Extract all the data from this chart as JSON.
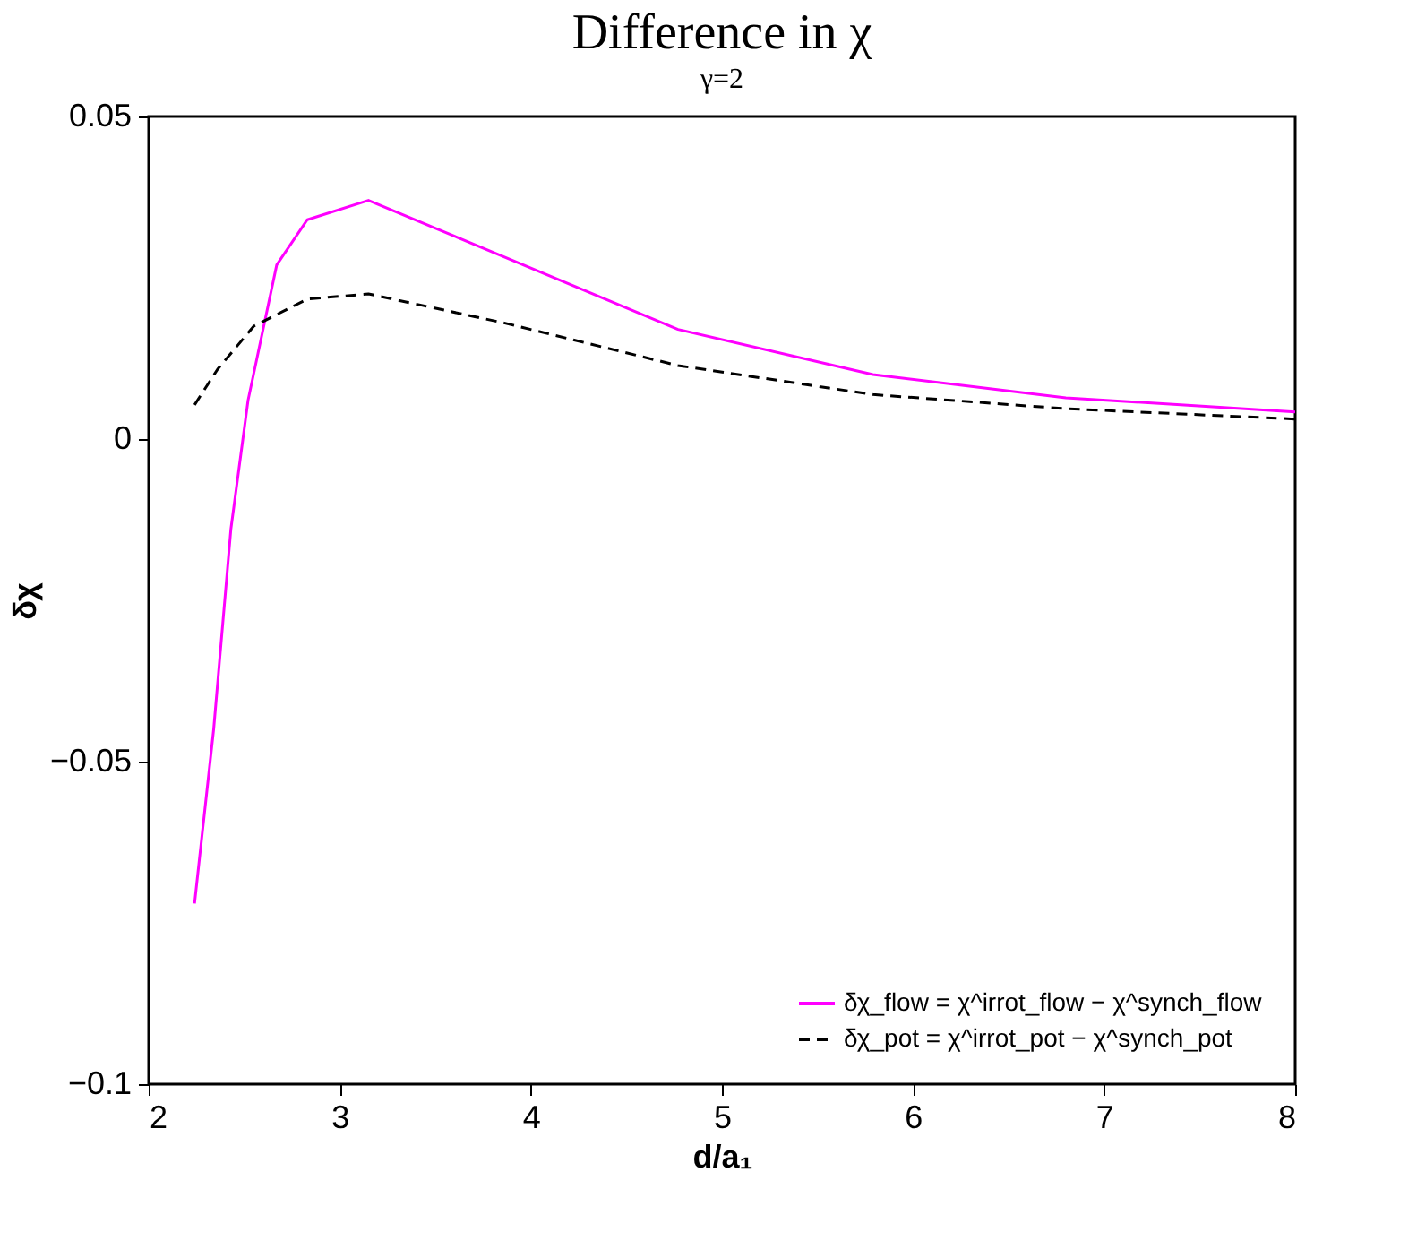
{
  "chart_data": {
    "type": "line",
    "title": "Difference in χ",
    "subtitle": "γ=2",
    "xlabel": "d/a₁",
    "ylabel": "δχ",
    "xlim": [
      2,
      8
    ],
    "xticks": [
      2,
      3,
      4,
      5,
      6,
      7,
      8
    ],
    "ylim": [
      -0.1,
      0.05
    ],
    "yticks": [
      {
        "value": -0.1,
        "label": "−0.1"
      },
      {
        "value": -0.05,
        "label": "−0.05"
      },
      0,
      0.05
    ],
    "grid": false,
    "legend": "bottom right",
    "marker": "none",
    "series": [
      {
        "name": "δχ_flow = χ^irrot_flow − χ^synch_flow",
        "color": "#ff00ff",
        "line_style": "solid",
        "x": [
          2.24,
          2.34,
          2.43,
          2.52,
          2.67,
          2.83,
          3.15,
          4.77,
          5.79,
          6.8,
          8
        ],
        "values": [
          -0.072,
          -0.045,
          -0.014,
          0.006,
          0.027,
          0.034,
          0.037,
          0.017,
          0.01,
          0.0064,
          0.0042
        ]
      },
      {
        "name": "δχ_pot = χ^irrot_pot − χ^synch_pot",
        "color": "#000000",
        "line_style": "dashed",
        "x": [
          2.24,
          2.36,
          2.55,
          2.83,
          3.15,
          3.86,
          4.77,
          5.79,
          6.8,
          8
        ],
        "values": [
          0.0053,
          0.0108,
          0.0175,
          0.0217,
          0.0225,
          0.018,
          0.0114,
          0.0069,
          0.0047,
          0.0031
        ]
      }
    ]
  }
}
